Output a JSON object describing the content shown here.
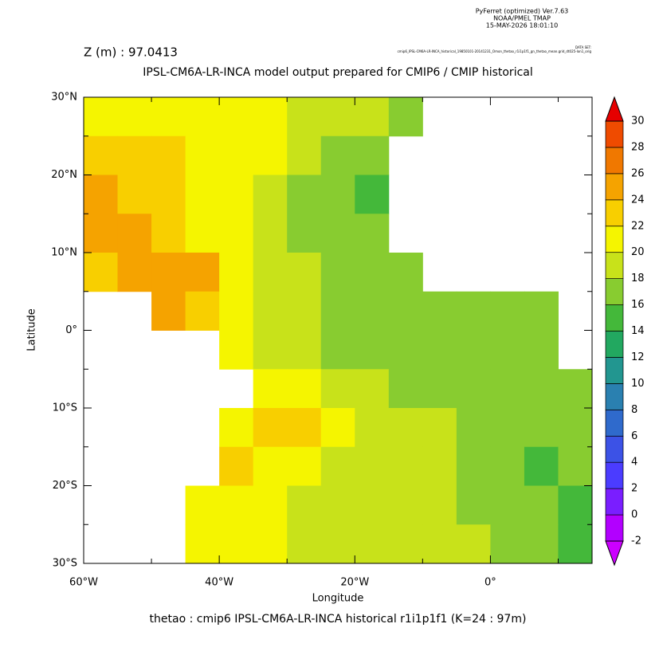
{
  "chart_data": {
    "type": "heatmap",
    "header": [
      "PyFerret (optimized) Ver.7.63",
      "NOAA/PMEL TMAP",
      "15-MAY-2026 18:01:10"
    ],
    "dataset_label": "DATA SET:",
    "dataset": "cmip6_IPSL-CM6A-LR-INCA_historical_19850101-20141231_Omon_thetao_r1i1p1f1_gn_thetao_mean.grid_dt025-lon1_orig",
    "subtitle": "Z (m) : 97.0413",
    "title": "IPSL-CM6A-LR-INCA model output prepared for CMIP6 / CMIP historical",
    "x_label": "Longitude",
    "y_label": "Latitude",
    "footer": "thetao : cmip6 IPSL-CM6A-LR-INCA historical r1i1p1f1    (K=24 : 97m)",
    "xlim": [
      -60,
      15
    ],
    "ylim": [
      -30,
      30
    ],
    "xticks": [
      {
        "value": -60,
        "label": "60°W"
      },
      {
        "value": -40,
        "label": "40°W"
      },
      {
        "value": -20,
        "label": "20°W"
      },
      {
        "value": 0,
        "label": "0°"
      }
    ],
    "xminor": [
      -50,
      -30,
      -10,
      10
    ],
    "yticks": [
      {
        "value": 30,
        "label": "30°N"
      },
      {
        "value": 20,
        "label": "20°N"
      },
      {
        "value": 10,
        "label": "10°N"
      },
      {
        "value": 0,
        "label": "0°"
      },
      {
        "value": -10,
        "label": "10°S"
      },
      {
        "value": -20,
        "label": "20°S"
      },
      {
        "value": -30,
        "label": "30°S"
      }
    ],
    "yminor": [
      25,
      15,
      5,
      -5,
      -15,
      -25
    ],
    "lon": [
      -57.5,
      -52.5,
      -47.5,
      -42.5,
      -37.5,
      -32.5,
      -27.5,
      -22.5,
      -17.5,
      -12.5,
      -7.5,
      -2.5,
      2.5,
      7.5,
      12.5
    ],
    "lat": [
      27.5,
      22.5,
      17.5,
      12.5,
      7.5,
      2.5,
      -2.5,
      -7.5,
      -12.5,
      -17.5,
      -22.5,
      -27.5
    ],
    "z": [
      [
        21,
        21,
        20,
        20,
        20,
        20,
        19,
        18,
        18,
        17,
        null,
        null,
        null,
        null,
        null
      ],
      [
        23,
        23,
        23,
        21,
        20,
        21,
        19,
        17,
        16,
        null,
        null,
        null,
        null,
        null,
        null
      ],
      [
        24,
        23,
        22,
        21,
        20,
        19,
        17,
        16,
        15,
        null,
        null,
        null,
        null,
        null,
        null
      ],
      [
        24,
        24,
        23,
        21,
        20,
        19,
        17,
        16,
        16,
        null,
        null,
        null,
        null,
        null,
        null
      ],
      [
        22,
        24,
        25,
        24,
        20,
        19,
        18,
        17,
        17,
        17,
        null,
        null,
        null,
        null,
        null
      ],
      [
        null,
        null,
        24,
        23,
        20,
        19,
        18,
        17,
        17,
        17,
        17,
        17,
        17,
        17,
        null
      ],
      [
        null,
        null,
        null,
        null,
        21,
        19,
        18,
        17,
        16,
        16,
        17,
        17,
        17,
        17,
        null
      ],
      [
        null,
        null,
        null,
        null,
        null,
        21,
        20,
        19,
        18,
        17,
        16,
        17,
        17,
        17,
        17
      ],
      [
        null,
        null,
        null,
        null,
        21,
        22,
        22,
        21,
        19,
        18,
        18,
        17,
        16,
        16,
        16
      ],
      [
        null,
        null,
        null,
        null,
        22,
        21,
        20,
        19,
        18,
        18,
        18,
        17,
        16,
        15,
        16
      ],
      [
        null,
        null,
        null,
        21,
        20,
        20,
        19,
        19,
        18,
        18,
        18,
        17,
        17,
        16,
        15
      ],
      [
        null,
        null,
        null,
        20,
        20,
        20,
        19,
        19,
        18,
        18,
        18,
        18,
        17,
        16,
        15
      ]
    ],
    "levels": [
      -2,
      0,
      2,
      4,
      6,
      8,
      10,
      12,
      14,
      16,
      18,
      20,
      22,
      24,
      26,
      28,
      30
    ],
    "colors": [
      "#b200ff",
      "#7a1eff",
      "#4b3cff",
      "#3c52e6",
      "#2f6acc",
      "#2a80b0",
      "#229690",
      "#22a860",
      "#44b83a",
      "#88cc30",
      "#c8e21a",
      "#f5f500",
      "#f8cf00",
      "#f5a300",
      "#f07800",
      "#ef4b00"
    ],
    "under_color": "#cc00ff",
    "over_color": "#e60000"
  }
}
